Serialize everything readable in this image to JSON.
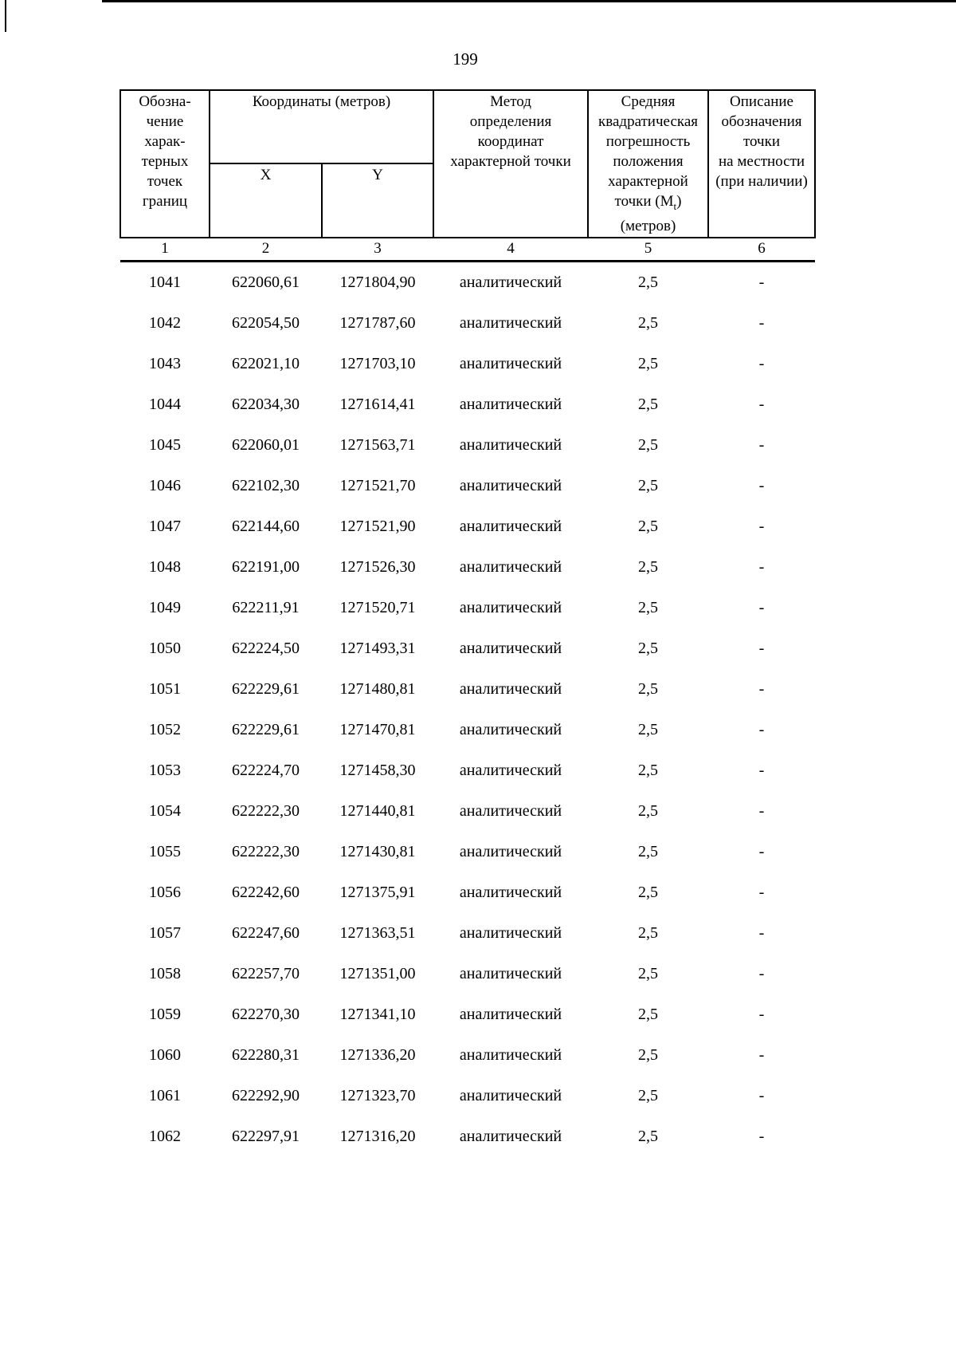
{
  "page": {
    "number": "199"
  },
  "table": {
    "header": {
      "col1": "Обозна-\nчение\nхарак-\nтерных\nточек\nграниц",
      "coords_title": "Координаты (метров)",
      "x_label": "X",
      "y_label": "Y",
      "method": "Метод\nопределения\nкоординат\nхарактерной точки",
      "error_top": "Средняя\nквадратическая\nпогрешность\nположения\nхарактерной",
      "error_mt_pre": "точки (М",
      "error_mt_sub": "t",
      "error_mt_post": ")",
      "error_bottom": "(метров)",
      "col6": "Описание\nобозначения\nточки\nна местности\n(при наличии)",
      "column_numbers": [
        "1",
        "2",
        "3",
        "4",
        "5",
        "6"
      ]
    },
    "rows": [
      [
        "1041",
        "622060,61",
        "1271804,90",
        "аналитический",
        "2,5",
        "-"
      ],
      [
        "1042",
        "622054,50",
        "1271787,60",
        "аналитический",
        "2,5",
        "-"
      ],
      [
        "1043",
        "622021,10",
        "1271703,10",
        "аналитический",
        "2,5",
        "-"
      ],
      [
        "1044",
        "622034,30",
        "1271614,41",
        "аналитический",
        "2,5",
        "-"
      ],
      [
        "1045",
        "622060,01",
        "1271563,71",
        "аналитический",
        "2,5",
        "-"
      ],
      [
        "1046",
        "622102,30",
        "1271521,70",
        "аналитический",
        "2,5",
        "-"
      ],
      [
        "1047",
        "622144,60",
        "1271521,90",
        "аналитический",
        "2,5",
        "-"
      ],
      [
        "1048",
        "622191,00",
        "1271526,30",
        "аналитический",
        "2,5",
        "-"
      ],
      [
        "1049",
        "622211,91",
        "1271520,71",
        "аналитический",
        "2,5",
        "-"
      ],
      [
        "1050",
        "622224,50",
        "1271493,31",
        "аналитический",
        "2,5",
        "-"
      ],
      [
        "1051",
        "622229,61",
        "1271480,81",
        "аналитический",
        "2,5",
        "-"
      ],
      [
        "1052",
        "622229,61",
        "1271470,81",
        "аналитический",
        "2,5",
        "-"
      ],
      [
        "1053",
        "622224,70",
        "1271458,30",
        "аналитический",
        "2,5",
        "-"
      ],
      [
        "1054",
        "622222,30",
        "1271440,81",
        "аналитический",
        "2,5",
        "-"
      ],
      [
        "1055",
        "622222,30",
        "1271430,81",
        "аналитический",
        "2,5",
        "-"
      ],
      [
        "1056",
        "622242,60",
        "1271375,91",
        "аналитический",
        "2,5",
        "-"
      ],
      [
        "1057",
        "622247,60",
        "1271363,51",
        "аналитический",
        "2,5",
        "-"
      ],
      [
        "1058",
        "622257,70",
        "1271351,00",
        "аналитический",
        "2,5",
        "-"
      ],
      [
        "1059",
        "622270,30",
        "1271341,10",
        "аналитический",
        "2,5",
        "-"
      ],
      [
        "1060",
        "622280,31",
        "1271336,20",
        "аналитический",
        "2,5",
        "-"
      ],
      [
        "1061",
        "622292,90",
        "1271323,70",
        "аналитический",
        "2,5",
        "-"
      ],
      [
        "1062",
        "622297,91",
        "1271316,20",
        "аналитический",
        "2,5",
        "-"
      ]
    ]
  }
}
